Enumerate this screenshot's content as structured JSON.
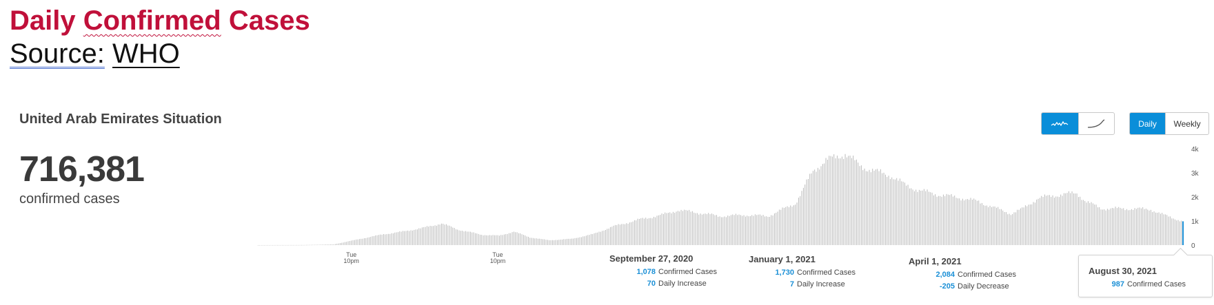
{
  "header": {
    "title_part1": "Daily ",
    "title_part2": "Confirmed",
    "title_part3": " Cases",
    "source_label": "Source:",
    "source_link": "WHO"
  },
  "widget": {
    "title": "United Arab Emirates Situation",
    "total": "716,381",
    "total_caption": "confirmed cases",
    "toggle_linear_icon": "wave-line-icon",
    "toggle_cumulative_icon": "curve-line-icon",
    "daily_label": "Daily",
    "weekly_label": "Weekly"
  },
  "annotations": [
    {
      "date": "September 27, 2020",
      "rows": [
        {
          "value": "1,078",
          "label": "Confirmed Cases"
        },
        {
          "value": "70",
          "label": "Daily Increase"
        }
      ]
    },
    {
      "date": "January 1, 2021",
      "rows": [
        {
          "value": "1,730",
          "label": "Confirmed Cases"
        },
        {
          "value": "7",
          "label": "Daily Increase"
        }
      ]
    },
    {
      "date": "April 1, 2021",
      "rows": [
        {
          "value": "2,084",
          "label": "Confirmed Cases"
        },
        {
          "value": "-205",
          "label": "Daily Decrease"
        }
      ]
    }
  ],
  "tooltip": {
    "date": "August 30, 2021",
    "value": "987",
    "label": "Confirmed Cases"
  },
  "chart_data": {
    "type": "bar",
    "x_start": "2020-01-29",
    "x_end": "2021-08-30",
    "x_tick_labels": [
      {
        "date": "2020-03-31",
        "line1": "Tue",
        "line2": "10pm"
      },
      {
        "date": "2020-06-30",
        "line1": "Tue",
        "line2": "10pm"
      }
    ],
    "y_ticks": [
      {
        "value": 0,
        "label": "0"
      },
      {
        "value": 1000,
        "label": "1k"
      },
      {
        "value": 2000,
        "label": "2k"
      },
      {
        "value": 3000,
        "label": "3k"
      },
      {
        "value": 4000,
        "label": "4k"
      }
    ],
    "ylim": [
      0,
      4000
    ],
    "bar_color": "#b3b3b3",
    "highlight_color": "#1a8fd6",
    "highlight_date": "2021-08-30",
    "series_knots": [
      [
        "2020-01-29",
        0
      ],
      [
        "2020-03-01",
        5
      ],
      [
        "2020-03-20",
        30
      ],
      [
        "2020-04-05",
        250
      ],
      [
        "2020-04-20",
        450
      ],
      [
        "2020-05-01",
        550
      ],
      [
        "2020-05-15",
        720
      ],
      [
        "2020-05-26",
        900
      ],
      [
        "2020-06-05",
        650
      ],
      [
        "2020-06-20",
        430
      ],
      [
        "2020-07-01",
        390
      ],
      [
        "2020-07-10",
        560
      ],
      [
        "2020-07-20",
        320
      ],
      [
        "2020-08-01",
        200
      ],
      [
        "2020-08-15",
        260
      ],
      [
        "2020-08-28",
        450
      ],
      [
        "2020-09-10",
        780
      ],
      [
        "2020-09-27",
        1078
      ],
      [
        "2020-10-10",
        1250
      ],
      [
        "2020-10-20",
        1450
      ],
      [
        "2020-11-01",
        1350
      ],
      [
        "2020-11-15",
        1200
      ],
      [
        "2020-12-01",
        1250
      ],
      [
        "2020-12-15",
        1200
      ],
      [
        "2021-01-01",
        1730
      ],
      [
        "2021-01-05",
        2200
      ],
      [
        "2021-01-12",
        3100
      ],
      [
        "2021-01-20",
        3500
      ],
      [
        "2021-02-01",
        3800
      ],
      [
        "2021-02-10",
        3300
      ],
      [
        "2021-02-20",
        3050
      ],
      [
        "2021-03-01",
        2900
      ],
      [
        "2021-03-10",
        2500
      ],
      [
        "2021-03-20",
        2250
      ],
      [
        "2021-04-01",
        2084
      ],
      [
        "2021-04-15",
        1950
      ],
      [
        "2021-04-25",
        1800
      ],
      [
        "2021-05-05",
        1550
      ],
      [
        "2021-05-15",
        1300
      ],
      [
        "2021-05-22",
        1500
      ],
      [
        "2021-06-01",
        1950
      ],
      [
        "2021-06-15",
        2100
      ],
      [
        "2021-06-25",
        2150
      ],
      [
        "2021-07-01",
        1800
      ],
      [
        "2021-07-10",
        1520
      ],
      [
        "2021-07-30",
        1510
      ],
      [
        "2021-08-10",
        1480
      ],
      [
        "2021-08-18",
        1250
      ],
      [
        "2021-08-30",
        987
      ]
    ]
  }
}
